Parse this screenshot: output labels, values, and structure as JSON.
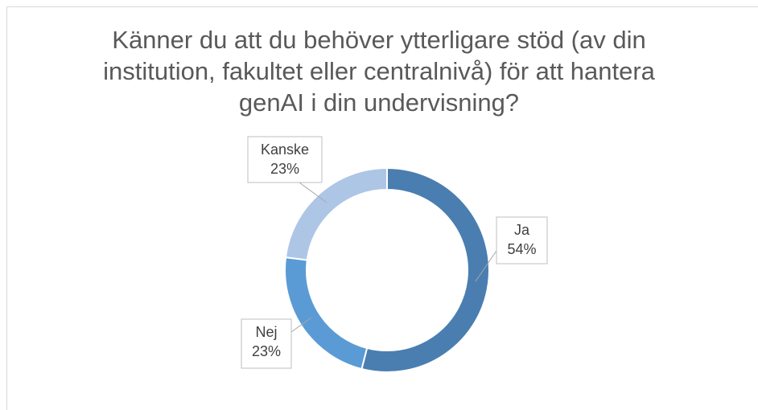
{
  "chart_data": {
    "type": "donut",
    "title": "Känner du att du behöver ytterligare stöd (av din institution, fakultet eller centralnivå) för att hantera genAI i din undervisning?",
    "categories": [
      "Ja",
      "Nej",
      "Kanske"
    ],
    "values": [
      54,
      23,
      23
    ],
    "value_labels": [
      "54%",
      "23%",
      "23%"
    ],
    "colors": [
      "#4a7eb0",
      "#5b9bd5",
      "#adc6e6"
    ]
  }
}
